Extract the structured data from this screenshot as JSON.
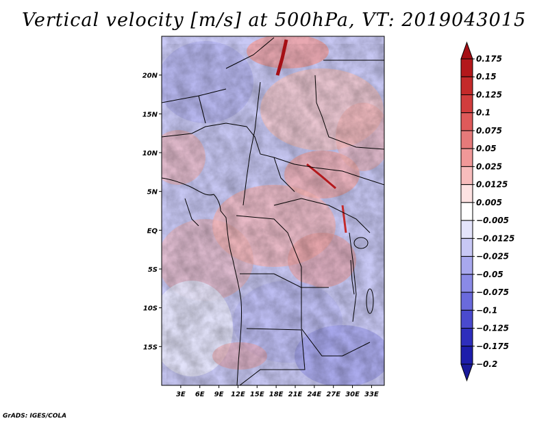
{
  "title": "Vertical velocity [m/s] at 500hPa, VT: 2019043015",
  "footer": "GrADS: IGES/COLA",
  "map": {
    "region": "Central Africa",
    "lon_range": [
      0,
      35
    ],
    "lat_range": [
      -20,
      25
    ],
    "lon_ticks": [
      "3E",
      "6E",
      "9E",
      "12E",
      "15E",
      "18E",
      "21E",
      "24E",
      "27E",
      "30E",
      "33E"
    ],
    "lat_ticks": [
      "20N",
      "15N",
      "10N",
      "5N",
      "EQ",
      "5S",
      "10S",
      "15S"
    ]
  },
  "colorbar": {
    "labels": [
      "0.175",
      "0.15",
      "0.125",
      "0.1",
      "0.075",
      "0.05",
      "0.025",
      "0.0125",
      "0.005",
      "−0.005",
      "−0.0125",
      "−0.025",
      "−0.05",
      "−0.075",
      "−0.1",
      "−0.125",
      "−0.175",
      "−0.2"
    ],
    "colors": [
      "#a50f15",
      "#b3181b",
      "#c42a2a",
      "#d13d3d",
      "#de5a5a",
      "#e67a7a",
      "#f09898",
      "#f7bcbc",
      "#fde2e2",
      "#ffffff",
      "#e4e4fb",
      "#c8c8f5",
      "#a8a8ee",
      "#8a8ae6",
      "#6a6adc",
      "#4a4ace",
      "#2e2ebc",
      "#1d1dab",
      "#1a1a9a"
    ]
  }
}
